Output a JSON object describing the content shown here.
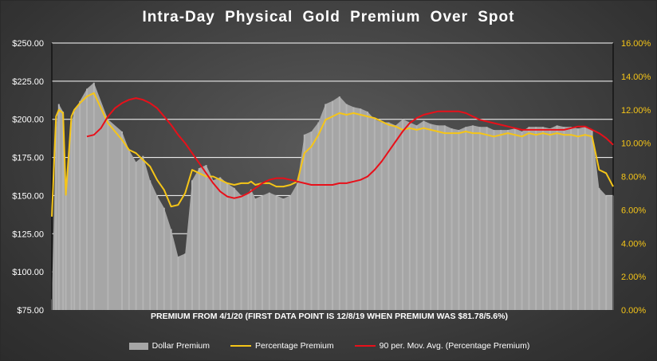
{
  "chart_data": {
    "type": "bar+line",
    "title": "Intra-Day Physical Gold Premium Over Spot",
    "note": "PREMIUM FROM 4/1/20 (FIRST DATA POINT IS 12/8/19 WHEN PREMIUM WAS $81.78/5.6%)",
    "y_left": {
      "ticks": [
        "$75.00",
        "$100.00",
        "$125.00",
        "$150.00",
        "$175.00",
        "$200.00",
        "$225.00",
        "$250.00"
      ],
      "range": [
        75,
        250
      ]
    },
    "y_right": {
      "ticks": [
        "0.00%",
        "2.00%",
        "4.00%",
        "6.00%",
        "8.00%",
        "10.00%",
        "12.00%",
        "14.00%",
        "16.00%"
      ],
      "range": [
        0,
        16
      ]
    },
    "grid": true,
    "legend_position": "bottom",
    "colors": {
      "dollar_premium": "#a6a6a6",
      "percentage_premium": "#f5c518",
      "moving_average": "#e8101a"
    },
    "series": [
      {
        "name": "Dollar Premium",
        "type": "area",
        "axis": "left",
        "x": [
          0,
          3,
          5,
          8,
          10,
          14,
          16,
          20,
          25,
          30,
          40,
          50,
          55,
          60,
          65,
          70,
          75,
          80,
          85,
          90,
          95,
          100,
          105,
          110,
          115,
          120,
          125,
          130,
          135,
          140,
          142,
          145,
          150,
          155,
          160,
          165,
          170,
          175,
          180,
          185,
          190,
          195,
          200,
          205,
          210,
          215,
          220,
          225,
          230,
          235,
          240,
          245,
          250,
          255,
          260,
          265,
          270,
          275,
          280,
          285,
          290,
          295,
          300,
          305,
          310,
          315,
          320,
          325,
          330,
          335,
          340,
          345,
          350,
          355,
          360,
          365,
          370,
          375,
          380,
          385,
          390,
          395,
          400
        ],
        "values": [
          82,
          195,
          210,
          205,
          158,
          198,
          205,
          212,
          220,
          224,
          200,
          192,
          180,
          172,
          176,
          160,
          150,
          142,
          128,
          110,
          112,
          160,
          168,
          170,
          160,
          162,
          158,
          155,
          150,
          152,
          154,
          148,
          150,
          152,
          150,
          148,
          150,
          158,
          190,
          192,
          198,
          210,
          212,
          215,
          210,
          208,
          207,
          205,
          200,
          198,
          198,
          196,
          200,
          198,
          196,
          199,
          197,
          196,
          196,
          194,
          193,
          195,
          196,
          195,
          195,
          193,
          193,
          193,
          194,
          192,
          195,
          195,
          195,
          194,
          196,
          195,
          195,
          194,
          195,
          193,
          155,
          150,
          150
        ]
      },
      {
        "name": "Percentage Premium",
        "type": "line",
        "axis": "right",
        "x": [
          0,
          3,
          5,
          8,
          10,
          14,
          16,
          20,
          25,
          30,
          40,
          50,
          55,
          60,
          65,
          70,
          75,
          80,
          85,
          90,
          95,
          100,
          105,
          110,
          115,
          120,
          125,
          130,
          135,
          140,
          142,
          145,
          150,
          155,
          160,
          165,
          170,
          175,
          180,
          185,
          190,
          195,
          200,
          205,
          210,
          215,
          220,
          225,
          230,
          235,
          240,
          245,
          250,
          255,
          260,
          265,
          270,
          275,
          280,
          285,
          290,
          295,
          300,
          305,
          310,
          315,
          320,
          325,
          330,
          335,
          340,
          345,
          350,
          355,
          360,
          365,
          370,
          375,
          380,
          385,
          390,
          395,
          400
        ],
        "values": [
          5.6,
          11.6,
          12.0,
          11.8,
          6.9,
          11.6,
          12.0,
          12.4,
          12.8,
          13.0,
          11.2,
          10.2,
          9.6,
          9.4,
          9.0,
          8.6,
          7.8,
          7.2,
          6.2,
          6.3,
          7.0,
          8.4,
          8.2,
          8.0,
          8.0,
          7.8,
          7.6,
          7.5,
          7.6,
          7.6,
          7.7,
          7.5,
          7.6,
          7.6,
          7.4,
          7.4,
          7.5,
          7.7,
          9.4,
          9.8,
          10.5,
          11.4,
          11.6,
          11.8,
          11.7,
          11.8,
          11.7,
          11.6,
          11.5,
          11.3,
          11.1,
          11.0,
          10.8,
          10.9,
          10.8,
          10.9,
          10.8,
          10.7,
          10.6,
          10.6,
          10.6,
          10.7,
          10.6,
          10.6,
          10.5,
          10.4,
          10.5,
          10.6,
          10.5,
          10.4,
          10.6,
          10.5,
          10.6,
          10.5,
          10.6,
          10.5,
          10.5,
          10.4,
          10.5,
          10.4,
          8.4,
          8.2,
          7.4
        ]
      },
      {
        "name": "90 per. Mov. Avg. (Percentage Premium)",
        "type": "line",
        "axis": "right",
        "x": [
          25,
          30,
          35,
          40,
          45,
          50,
          55,
          60,
          65,
          70,
          75,
          80,
          85,
          90,
          95,
          100,
          105,
          110,
          115,
          120,
          125,
          130,
          135,
          140,
          145,
          150,
          155,
          160,
          165,
          170,
          175,
          180,
          185,
          190,
          195,
          200,
          205,
          210,
          215,
          220,
          225,
          230,
          235,
          240,
          245,
          250,
          255,
          260,
          265,
          270,
          275,
          280,
          285,
          290,
          295,
          300,
          305,
          310,
          315,
          320,
          325,
          330,
          335,
          340,
          345,
          350,
          355,
          360,
          365,
          370,
          375,
          380,
          385,
          390,
          395,
          400
        ],
        "values": [
          10.4,
          10.5,
          10.9,
          11.6,
          12.1,
          12.4,
          12.6,
          12.7,
          12.6,
          12.4,
          12.1,
          11.6,
          11.1,
          10.5,
          10.0,
          9.4,
          8.8,
          8.2,
          7.6,
          7.1,
          6.8,
          6.7,
          6.8,
          7.0,
          7.3,
          7.6,
          7.8,
          7.9,
          7.9,
          7.8,
          7.7,
          7.6,
          7.5,
          7.5,
          7.5,
          7.5,
          7.6,
          7.6,
          7.7,
          7.8,
          8.0,
          8.4,
          8.9,
          9.5,
          10.1,
          10.7,
          11.2,
          11.5,
          11.7,
          11.8,
          11.9,
          11.9,
          11.9,
          11.9,
          11.8,
          11.6,
          11.4,
          11.3,
          11.2,
          11.1,
          11.0,
          10.9,
          10.8,
          10.8,
          10.8,
          10.8,
          10.8,
          10.8,
          10.8,
          10.9,
          11.0,
          11.0,
          10.8,
          10.6,
          10.3,
          9.9
        ]
      }
    ]
  }
}
